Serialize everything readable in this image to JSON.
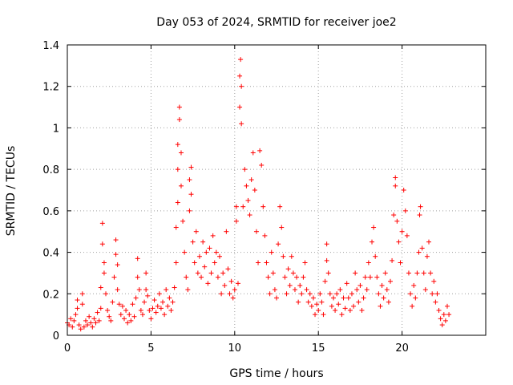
{
  "chart_data": {
    "type": "scatter",
    "title": "Day 053 of 2024, SRMTID for receiver joe2",
    "xlabel": "GPS time / hours",
    "ylabel": "SRMTID / TECUs",
    "xlim": [
      0,
      25
    ],
    "ylim": [
      0,
      1.4
    ],
    "xticks": [
      0,
      5,
      10,
      15,
      20
    ],
    "xtick_labels": [
      "0",
      "5",
      "10",
      "15",
      "20"
    ],
    "yticks": [
      0,
      0.2,
      0.4,
      0.6,
      0.8,
      1,
      1.2,
      1.4
    ],
    "ytick_labels": [
      "0",
      "0.2",
      "0.4",
      "0.6",
      "0.8",
      "1",
      "1.2",
      "1.4"
    ],
    "grid": true,
    "marker": "+",
    "color": "#ff0000",
    "series": [
      {
        "name": "SRMTID",
        "points": [
          [
            0.0,
            0.06
          ],
          [
            0.1,
            0.05
          ],
          [
            0.2,
            0.08
          ],
          [
            0.3,
            0.04
          ],
          [
            0.4,
            0.07
          ],
          [
            0.5,
            0.1
          ],
          [
            0.6,
            0.13
          ],
          [
            0.6,
            0.17
          ],
          [
            0.7,
            0.05
          ],
          [
            0.8,
            0.03
          ],
          [
            0.9,
            0.2
          ],
          [
            0.9,
            0.15
          ],
          [
            1.0,
            0.04
          ],
          [
            1.1,
            0.07
          ],
          [
            1.2,
            0.05
          ],
          [
            1.3,
            0.09
          ],
          [
            1.4,
            0.06
          ],
          [
            1.5,
            0.04
          ],
          [
            1.6,
            0.08
          ],
          [
            1.7,
            0.06
          ],
          [
            1.8,
            0.11
          ],
          [
            1.9,
            0.07
          ],
          [
            2.0,
            0.13
          ],
          [
            2.0,
            0.23
          ],
          [
            2.1,
            0.44
          ],
          [
            2.1,
            0.54
          ],
          [
            2.2,
            0.35
          ],
          [
            2.2,
            0.3
          ],
          [
            2.3,
            0.2
          ],
          [
            2.4,
            0.12
          ],
          [
            2.5,
            0.09
          ],
          [
            2.6,
            0.07
          ],
          [
            2.7,
            0.16
          ],
          [
            2.8,
            0.28
          ],
          [
            2.9,
            0.39
          ],
          [
            2.9,
            0.46
          ],
          [
            3.0,
            0.34
          ],
          [
            3.0,
            0.22
          ],
          [
            3.1,
            0.15
          ],
          [
            3.2,
            0.1
          ],
          [
            3.3,
            0.14
          ],
          [
            3.4,
            0.08
          ],
          [
            3.5,
            0.12
          ],
          [
            3.6,
            0.06
          ],
          [
            3.7,
            0.1
          ],
          [
            3.8,
            0.07
          ],
          [
            3.9,
            0.15
          ],
          [
            4.0,
            0.09
          ],
          [
            4.1,
            0.18
          ],
          [
            4.2,
            0.28
          ],
          [
            4.2,
            0.37
          ],
          [
            4.3,
            0.22
          ],
          [
            4.4,
            0.12
          ],
          [
            4.5,
            0.1
          ],
          [
            4.6,
            0.16
          ],
          [
            4.7,
            0.22
          ],
          [
            4.7,
            0.3
          ],
          [
            4.8,
            0.19
          ],
          [
            4.9,
            0.12
          ],
          [
            5.0,
            0.08
          ],
          [
            5.1,
            0.13
          ],
          [
            5.2,
            0.17
          ],
          [
            5.3,
            0.11
          ],
          [
            5.4,
            0.14
          ],
          [
            5.5,
            0.2
          ],
          [
            5.6,
            0.13
          ],
          [
            5.7,
            0.16
          ],
          [
            5.8,
            0.1
          ],
          [
            5.9,
            0.22
          ],
          [
            6.0,
            0.14
          ],
          [
            6.1,
            0.18
          ],
          [
            6.2,
            0.12
          ],
          [
            6.3,
            0.16
          ],
          [
            6.4,
            0.23
          ],
          [
            6.5,
            0.35
          ],
          [
            6.5,
            0.52
          ],
          [
            6.6,
            0.64
          ],
          [
            6.6,
            0.8
          ],
          [
            6.6,
            0.92
          ],
          [
            6.7,
            1.1
          ],
          [
            6.7,
            1.04
          ],
          [
            6.8,
            0.88
          ],
          [
            6.8,
            0.72
          ],
          [
            6.9,
            0.55
          ],
          [
            7.0,
            0.4
          ],
          [
            7.1,
            0.28
          ],
          [
            7.2,
            0.22
          ],
          [
            7.3,
            0.6
          ],
          [
            7.3,
            0.75
          ],
          [
            7.4,
            0.81
          ],
          [
            7.4,
            0.68
          ],
          [
            7.5,
            0.45
          ],
          [
            7.6,
            0.35
          ],
          [
            7.7,
            0.5
          ],
          [
            7.8,
            0.3
          ],
          [
            7.9,
            0.38
          ],
          [
            8.0,
            0.28
          ],
          [
            8.1,
            0.45
          ],
          [
            8.2,
            0.33
          ],
          [
            8.3,
            0.4
          ],
          [
            8.4,
            0.25
          ],
          [
            8.5,
            0.42
          ],
          [
            8.6,
            0.3
          ],
          [
            8.7,
            0.48
          ],
          [
            8.8,
            0.35
          ],
          [
            8.9,
            0.4
          ],
          [
            9.0,
            0.28
          ],
          [
            9.1,
            0.38
          ],
          [
            9.2,
            0.2
          ],
          [
            9.3,
            0.3
          ],
          [
            9.4,
            0.24
          ],
          [
            9.5,
            0.5
          ],
          [
            9.6,
            0.32
          ],
          [
            9.7,
            0.2
          ],
          [
            9.8,
            0.26
          ],
          [
            9.9,
            0.18
          ],
          [
            10.0,
            0.22
          ],
          [
            10.1,
            0.55
          ],
          [
            10.1,
            0.62
          ],
          [
            10.2,
            0.25
          ],
          [
            10.3,
            1.1
          ],
          [
            10.3,
            1.25
          ],
          [
            10.35,
            1.33
          ],
          [
            10.4,
            1.2
          ],
          [
            10.4,
            1.02
          ],
          [
            10.5,
            0.62
          ],
          [
            10.6,
            0.8
          ],
          [
            10.7,
            0.72
          ],
          [
            10.8,
            0.65
          ],
          [
            10.9,
            0.58
          ],
          [
            11.0,
            0.75
          ],
          [
            11.1,
            0.88
          ],
          [
            11.2,
            0.7
          ],
          [
            11.3,
            0.5
          ],
          [
            11.4,
            0.35
          ],
          [
            11.5,
            0.89
          ],
          [
            11.6,
            0.82
          ],
          [
            11.7,
            0.62
          ],
          [
            11.8,
            0.48
          ],
          [
            11.9,
            0.35
          ],
          [
            12.0,
            0.28
          ],
          [
            12.1,
            0.2
          ],
          [
            12.2,
            0.4
          ],
          [
            12.3,
            0.3
          ],
          [
            12.4,
            0.22
          ],
          [
            12.5,
            0.18
          ],
          [
            12.6,
            0.44
          ],
          [
            12.7,
            0.62
          ],
          [
            12.8,
            0.52
          ],
          [
            12.9,
            0.38
          ],
          [
            13.0,
            0.28
          ],
          [
            13.1,
            0.2
          ],
          [
            13.2,
            0.32
          ],
          [
            13.3,
            0.24
          ],
          [
            13.4,
            0.38
          ],
          [
            13.5,
            0.3
          ],
          [
            13.6,
            0.22
          ],
          [
            13.7,
            0.28
          ],
          [
            13.8,
            0.16
          ],
          [
            13.9,
            0.24
          ],
          [
            14.0,
            0.2
          ],
          [
            14.1,
            0.28
          ],
          [
            14.2,
            0.35
          ],
          [
            14.3,
            0.22
          ],
          [
            14.4,
            0.16
          ],
          [
            14.5,
            0.2
          ],
          [
            14.6,
            0.14
          ],
          [
            14.7,
            0.18
          ],
          [
            14.8,
            0.1
          ],
          [
            14.9,
            0.15
          ],
          [
            15.0,
            0.12
          ],
          [
            15.1,
            0.2
          ],
          [
            15.2,
            0.16
          ],
          [
            15.3,
            0.1
          ],
          [
            15.4,
            0.26
          ],
          [
            15.5,
            0.36
          ],
          [
            15.5,
            0.44
          ],
          [
            15.6,
            0.3
          ],
          [
            15.7,
            0.2
          ],
          [
            15.8,
            0.14
          ],
          [
            15.9,
            0.18
          ],
          [
            16.0,
            0.12
          ],
          [
            16.1,
            0.2
          ],
          [
            16.2,
            0.15
          ],
          [
            16.3,
            0.22
          ],
          [
            16.4,
            0.1
          ],
          [
            16.5,
            0.18
          ],
          [
            16.6,
            0.13
          ],
          [
            16.7,
            0.25
          ],
          [
            16.8,
            0.18
          ],
          [
            16.9,
            0.12
          ],
          [
            17.0,
            0.2
          ],
          [
            17.1,
            0.14
          ],
          [
            17.2,
            0.3
          ],
          [
            17.3,
            0.22
          ],
          [
            17.4,
            0.16
          ],
          [
            17.5,
            0.24
          ],
          [
            17.6,
            0.12
          ],
          [
            17.7,
            0.18
          ],
          [
            17.8,
            0.28
          ],
          [
            17.9,
            0.22
          ],
          [
            18.0,
            0.35
          ],
          [
            18.1,
            0.28
          ],
          [
            18.2,
            0.45
          ],
          [
            18.3,
            0.52
          ],
          [
            18.4,
            0.38
          ],
          [
            18.5,
            0.28
          ],
          [
            18.6,
            0.2
          ],
          [
            18.7,
            0.14
          ],
          [
            18.8,
            0.24
          ],
          [
            18.9,
            0.18
          ],
          [
            19.0,
            0.3
          ],
          [
            19.1,
            0.22
          ],
          [
            19.2,
            0.16
          ],
          [
            19.3,
            0.26
          ],
          [
            19.4,
            0.36
          ],
          [
            19.5,
            0.58
          ],
          [
            19.6,
            0.72
          ],
          [
            19.6,
            0.76
          ],
          [
            19.7,
            0.55
          ],
          [
            19.8,
            0.45
          ],
          [
            19.9,
            0.35
          ],
          [
            20.0,
            0.5
          ],
          [
            20.1,
            0.7
          ],
          [
            20.2,
            0.6
          ],
          [
            20.3,
            0.48
          ],
          [
            20.4,
            0.3
          ],
          [
            20.5,
            0.2
          ],
          [
            20.6,
            0.14
          ],
          [
            20.7,
            0.24
          ],
          [
            20.8,
            0.18
          ],
          [
            20.9,
            0.3
          ],
          [
            21.0,
            0.4
          ],
          [
            21.05,
            0.58
          ],
          [
            21.1,
            0.62
          ],
          [
            21.2,
            0.42
          ],
          [
            21.3,
            0.3
          ],
          [
            21.4,
            0.22
          ],
          [
            21.5,
            0.38
          ],
          [
            21.6,
            0.45
          ],
          [
            21.7,
            0.3
          ],
          [
            21.8,
            0.2
          ],
          [
            21.9,
            0.26
          ],
          [
            22.0,
            0.16
          ],
          [
            22.1,
            0.2
          ],
          [
            22.2,
            0.12
          ],
          [
            22.3,
            0.08
          ],
          [
            22.4,
            0.05
          ],
          [
            22.5,
            0.1
          ],
          [
            22.6,
            0.07
          ],
          [
            22.7,
            0.14
          ],
          [
            22.8,
            0.1
          ]
        ]
      }
    ]
  }
}
